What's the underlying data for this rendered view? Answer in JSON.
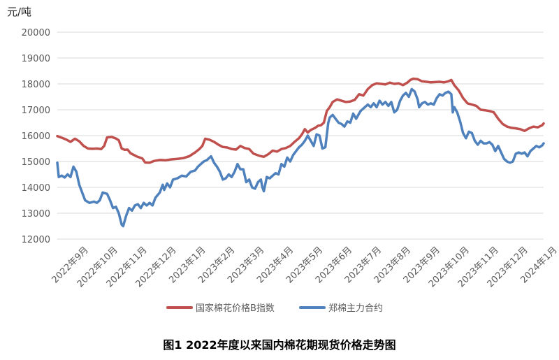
{
  "chart_data": {
    "type": "line",
    "unit_label": "元/吨",
    "caption": "图1  2022年度以来国内棉花期现货价格走势图",
    "ylim": [
      12000,
      20000
    ],
    "yticks": [
      12000,
      13000,
      14000,
      15000,
      16000,
      17000,
      18000,
      19000,
      20000
    ],
    "grid": true,
    "legend_position": "bottom",
    "categories": [
      "2022年9月",
      "2022年10月",
      "2022年11月",
      "2022年12月",
      "2023年1月",
      "2023年2月",
      "2023年3月",
      "2023年4月",
      "2023年5月",
      "2023年6月",
      "2023年7月",
      "2023年8月",
      "2023年9月",
      "2023年10月",
      "2023年11月",
      "2023年12月",
      "2024年1月"
    ],
    "series": [
      {
        "name": "国家棉花价格B指数",
        "color": "#c0504d",
        "values": [
          [
            0.0,
            15980
          ],
          [
            0.15,
            15920
          ],
          [
            0.3,
            15850
          ],
          [
            0.45,
            15760
          ],
          [
            0.6,
            15880
          ],
          [
            0.75,
            15780
          ],
          [
            0.9,
            15600
          ],
          [
            1.05,
            15500
          ],
          [
            1.2,
            15490
          ],
          [
            1.35,
            15500
          ],
          [
            1.5,
            15480
          ],
          [
            1.6,
            15600
          ],
          [
            1.7,
            15930
          ],
          [
            1.85,
            15950
          ],
          [
            2.0,
            15890
          ],
          [
            2.1,
            15820
          ],
          [
            2.2,
            15500
          ],
          [
            2.3,
            15450
          ],
          [
            2.4,
            15460
          ],
          [
            2.5,
            15320
          ],
          [
            2.7,
            15200
          ],
          [
            2.9,
            15120
          ],
          [
            3.0,
            14960
          ],
          [
            3.15,
            14950
          ],
          [
            3.3,
            15020
          ],
          [
            3.5,
            15060
          ],
          [
            3.7,
            15050
          ],
          [
            3.9,
            15080
          ],
          [
            4.1,
            15100
          ],
          [
            4.3,
            15130
          ],
          [
            4.5,
            15200
          ],
          [
            4.7,
            15350
          ],
          [
            4.85,
            15480
          ],
          [
            4.95,
            15600
          ],
          [
            5.05,
            15880
          ],
          [
            5.2,
            15840
          ],
          [
            5.35,
            15760
          ],
          [
            5.5,
            15650
          ],
          [
            5.65,
            15560
          ],
          [
            5.8,
            15540
          ],
          [
            5.95,
            15480
          ],
          [
            6.1,
            15460
          ],
          [
            6.25,
            15600
          ],
          [
            6.4,
            15520
          ],
          [
            6.55,
            15480
          ],
          [
            6.7,
            15300
          ],
          [
            6.9,
            15220
          ],
          [
            7.05,
            15180
          ],
          [
            7.2,
            15280
          ],
          [
            7.35,
            15420
          ],
          [
            7.5,
            15380
          ],
          [
            7.65,
            15480
          ],
          [
            7.8,
            15520
          ],
          [
            7.95,
            15600
          ],
          [
            8.1,
            15760
          ],
          [
            8.25,
            15900
          ],
          [
            8.35,
            16050
          ],
          [
            8.45,
            16250
          ],
          [
            8.55,
            16120
          ],
          [
            8.65,
            16220
          ],
          [
            8.8,
            16300
          ],
          [
            8.9,
            16380
          ],
          [
            9.0,
            16400
          ],
          [
            9.1,
            16500
          ],
          [
            9.2,
            16950
          ],
          [
            9.3,
            17100
          ],
          [
            9.4,
            17300
          ],
          [
            9.55,
            17400
          ],
          [
            9.7,
            17350
          ],
          [
            9.85,
            17300
          ],
          [
            10.0,
            17320
          ],
          [
            10.15,
            17380
          ],
          [
            10.3,
            17600
          ],
          [
            10.45,
            17550
          ],
          [
            10.6,
            17800
          ],
          [
            10.75,
            17950
          ],
          [
            10.9,
            18020
          ],
          [
            11.05,
            18000
          ],
          [
            11.2,
            17980
          ],
          [
            11.35,
            18050
          ],
          [
            11.5,
            18000
          ],
          [
            11.65,
            18020
          ],
          [
            11.8,
            17950
          ],
          [
            11.95,
            18050
          ],
          [
            12.05,
            18150
          ],
          [
            12.15,
            18200
          ],
          [
            12.3,
            18180
          ],
          [
            12.45,
            18100
          ],
          [
            12.6,
            18080
          ],
          [
            12.75,
            18060
          ],
          [
            12.9,
            18070
          ],
          [
            13.05,
            18080
          ],
          [
            13.2,
            18060
          ],
          [
            13.35,
            18100
          ],
          [
            13.45,
            18150
          ],
          [
            13.55,
            17950
          ],
          [
            13.7,
            17750
          ],
          [
            13.85,
            17450
          ],
          [
            14.0,
            17250
          ],
          [
            14.15,
            17200
          ],
          [
            14.3,
            17150
          ],
          [
            14.45,
            17000
          ],
          [
            14.6,
            16980
          ],
          [
            14.75,
            16950
          ],
          [
            14.9,
            16900
          ],
          [
            15.05,
            16650
          ],
          [
            15.2,
            16450
          ],
          [
            15.35,
            16350
          ],
          [
            15.5,
            16300
          ],
          [
            15.65,
            16280
          ],
          [
            15.8,
            16250
          ],
          [
            15.95,
            16180
          ],
          [
            16.1,
            16280
          ],
          [
            16.25,
            16350
          ],
          [
            16.4,
            16320
          ],
          [
            16.55,
            16400
          ],
          [
            16.6,
            16470
          ]
        ]
      },
      {
        "name": "郑棉主力合约",
        "color": "#4f81bd",
        "values": [
          [
            0.0,
            14950
          ],
          [
            0.05,
            14400
          ],
          [
            0.15,
            14450
          ],
          [
            0.25,
            14380
          ],
          [
            0.35,
            14500
          ],
          [
            0.45,
            14400
          ],
          [
            0.55,
            14800
          ],
          [
            0.65,
            14600
          ],
          [
            0.75,
            14100
          ],
          [
            0.85,
            13800
          ],
          [
            0.95,
            13500
          ],
          [
            1.1,
            13400
          ],
          [
            1.25,
            13450
          ],
          [
            1.35,
            13400
          ],
          [
            1.45,
            13500
          ],
          [
            1.55,
            13800
          ],
          [
            1.7,
            13750
          ],
          [
            1.8,
            13500
          ],
          [
            1.9,
            13200
          ],
          [
            2.0,
            13250
          ],
          [
            2.1,
            13000
          ],
          [
            2.2,
            12550
          ],
          [
            2.25,
            12500
          ],
          [
            2.35,
            12900
          ],
          [
            2.45,
            13200
          ],
          [
            2.55,
            13100
          ],
          [
            2.65,
            13300
          ],
          [
            2.75,
            13350
          ],
          [
            2.85,
            13200
          ],
          [
            2.95,
            13400
          ],
          [
            3.05,
            13300
          ],
          [
            3.15,
            13400
          ],
          [
            3.25,
            13300
          ],
          [
            3.35,
            13600
          ],
          [
            3.5,
            13800
          ],
          [
            3.6,
            14100
          ],
          [
            3.65,
            13900
          ],
          [
            3.75,
            14150
          ],
          [
            3.85,
            14000
          ],
          [
            3.95,
            14300
          ],
          [
            4.1,
            14350
          ],
          [
            4.25,
            14450
          ],
          [
            4.4,
            14420
          ],
          [
            4.55,
            14600
          ],
          [
            4.7,
            14650
          ],
          [
            4.8,
            14800
          ],
          [
            4.9,
            14900
          ],
          [
            5.0,
            15000
          ],
          [
            5.1,
            15050
          ],
          [
            5.2,
            15150
          ],
          [
            5.25,
            15200
          ],
          [
            5.35,
            14950
          ],
          [
            5.45,
            14800
          ],
          [
            5.55,
            14600
          ],
          [
            5.65,
            14300
          ],
          [
            5.75,
            14350
          ],
          [
            5.85,
            14500
          ],
          [
            5.95,
            14400
          ],
          [
            6.05,
            14600
          ],
          [
            6.15,
            14900
          ],
          [
            6.25,
            14700
          ],
          [
            6.35,
            14700
          ],
          [
            6.45,
            14200
          ],
          [
            6.55,
            14300
          ],
          [
            6.65,
            14000
          ],
          [
            6.75,
            13950
          ],
          [
            6.85,
            14200
          ],
          [
            6.95,
            14300
          ],
          [
            7.0,
            14000
          ],
          [
            7.05,
            13850
          ],
          [
            7.15,
            14400
          ],
          [
            7.25,
            14350
          ],
          [
            7.35,
            14450
          ],
          [
            7.45,
            14550
          ],
          [
            7.55,
            14500
          ],
          [
            7.65,
            14900
          ],
          [
            7.75,
            14800
          ],
          [
            7.85,
            15150
          ],
          [
            7.95,
            15000
          ],
          [
            8.05,
            15250
          ],
          [
            8.15,
            15400
          ],
          [
            8.25,
            15550
          ],
          [
            8.35,
            15650
          ],
          [
            8.45,
            15800
          ],
          [
            8.55,
            16000
          ],
          [
            8.65,
            15800
          ],
          [
            8.75,
            15600
          ],
          [
            8.85,
            16050
          ],
          [
            8.95,
            16000
          ],
          [
            9.05,
            15500
          ],
          [
            9.15,
            15550
          ],
          [
            9.25,
            16500
          ],
          [
            9.3,
            16700
          ],
          [
            9.4,
            16800
          ],
          [
            9.5,
            16650
          ],
          [
            9.6,
            16500
          ],
          [
            9.7,
            16450
          ],
          [
            9.8,
            16350
          ],
          [
            9.9,
            16550
          ],
          [
            10.0,
            16500
          ],
          [
            10.1,
            16850
          ],
          [
            10.2,
            16650
          ],
          [
            10.35,
            16950
          ],
          [
            10.5,
            17100
          ],
          [
            10.6,
            17200
          ],
          [
            10.7,
            17100
          ],
          [
            10.8,
            17250
          ],
          [
            10.9,
            17100
          ],
          [
            11.0,
            17350
          ],
          [
            11.1,
            17200
          ],
          [
            11.2,
            17300
          ],
          [
            11.3,
            17150
          ],
          [
            11.4,
            17300
          ],
          [
            11.5,
            16900
          ],
          [
            11.6,
            17000
          ],
          [
            11.7,
            17350
          ],
          [
            11.8,
            17550
          ],
          [
            11.9,
            17650
          ],
          [
            12.0,
            17500
          ],
          [
            12.1,
            17800
          ],
          [
            12.2,
            17700
          ],
          [
            12.3,
            17400
          ],
          [
            12.35,
            17100
          ],
          [
            12.45,
            17250
          ],
          [
            12.55,
            17300
          ],
          [
            12.65,
            17200
          ],
          [
            12.75,
            17250
          ],
          [
            12.85,
            17200
          ],
          [
            12.95,
            17450
          ],
          [
            13.05,
            17600
          ],
          [
            13.15,
            17550
          ],
          [
            13.25,
            17650
          ],
          [
            13.35,
            17700
          ],
          [
            13.45,
            17600
          ],
          [
            13.5,
            16900
          ],
          [
            13.55,
            17100
          ],
          [
            13.65,
            16900
          ],
          [
            13.75,
            16550
          ],
          [
            13.85,
            16100
          ],
          [
            13.95,
            15900
          ],
          [
            14.05,
            16150
          ],
          [
            14.15,
            16100
          ],
          [
            14.25,
            15800
          ],
          [
            14.35,
            15650
          ],
          [
            14.45,
            15800
          ],
          [
            14.55,
            15700
          ],
          [
            14.65,
            15700
          ],
          [
            14.75,
            15750
          ],
          [
            14.85,
            15650
          ],
          [
            14.95,
            15400
          ],
          [
            15.05,
            15600
          ],
          [
            15.15,
            15350
          ],
          [
            15.25,
            15100
          ],
          [
            15.35,
            15000
          ],
          [
            15.45,
            14950
          ],
          [
            15.55,
            15000
          ],
          [
            15.65,
            15300
          ],
          [
            15.75,
            15350
          ],
          [
            15.85,
            15300
          ],
          [
            15.95,
            15350
          ],
          [
            16.05,
            15200
          ],
          [
            16.15,
            15400
          ],
          [
            16.25,
            15500
          ],
          [
            16.35,
            15600
          ],
          [
            16.45,
            15550
          ],
          [
            16.55,
            15620
          ],
          [
            16.6,
            15700
          ]
        ]
      }
    ]
  }
}
